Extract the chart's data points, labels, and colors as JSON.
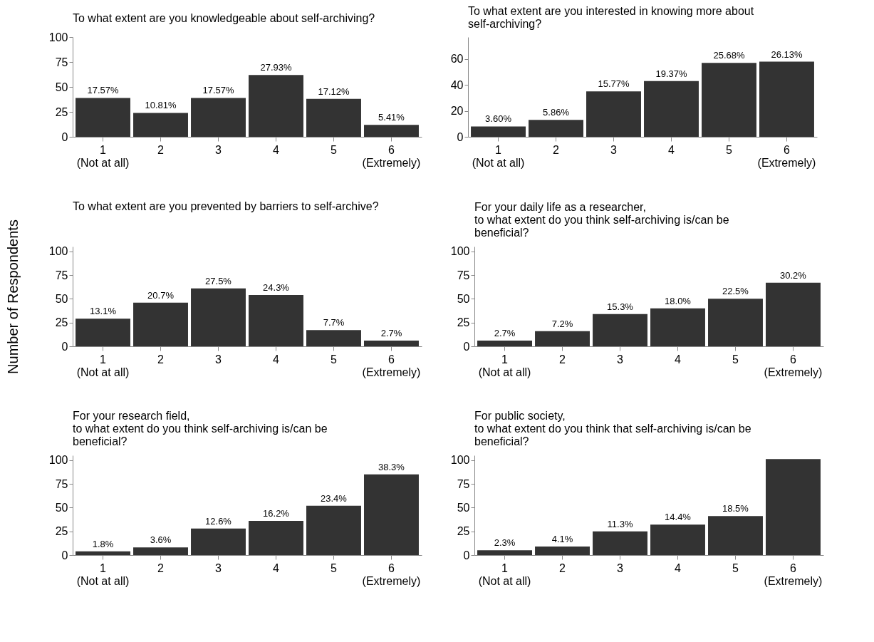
{
  "chart_data": [
    {
      "type": "bar",
      "title": "To what extent are you knowledgeable about self-archiving?",
      "categories": [
        "1\n(Not at all)",
        "2",
        "3",
        "4",
        "5",
        "6\n(Extremely)"
      ],
      "values": [
        39,
        24,
        39,
        62,
        38,
        12
      ],
      "color": "#333333",
      "ylim": [
        0,
        100
      ],
      "yticks": [
        0,
        25,
        50,
        75,
        100
      ],
      "annotations": [
        {
          "text": "17.57%",
          "x": "1\n(Not at all)",
          "y": 39
        },
        {
          "text": "10.81%",
          "x": "2",
          "y": 24
        },
        {
          "text": "17.57%",
          "x": "3",
          "y": 39
        },
        {
          "text": "27.93%",
          "x": "4",
          "y": 62
        },
        {
          "text": "17.12%",
          "x": "5",
          "y": 38
        },
        {
          "text": "5.41%",
          "x": "6\n(Extremely)",
          "y": 12
        }
      ]
    },
    {
      "type": "bar",
      "title": "To what extent are you interested in knowing more about\nself-archiving?",
      "categories": [
        "1\n(Not at all)",
        "2",
        "3",
        "4",
        "5",
        "6\n(Extremely)"
      ],
      "values": [
        8,
        13,
        35,
        43,
        57,
        58
      ],
      "color": "#333333",
      "ylim": [
        0,
        77
      ],
      "yticks": [
        0,
        20,
        40,
        60
      ],
      "annotations": [
        {
          "text": "3.60%",
          "x": "1\n(Not at all)",
          "y": 8
        },
        {
          "text": "5.86%",
          "x": "2",
          "y": 13
        },
        {
          "text": "15.77%",
          "x": "3",
          "y": 35
        },
        {
          "text": "19.37%",
          "x": "4",
          "y": 43
        },
        {
          "text": "25.68%",
          "x": "5",
          "y": 57
        },
        {
          "text": "26.13%",
          "x": "6\n(Extremely)",
          "y": 58
        }
      ]
    },
    {
      "type": "bar",
      "title": "To what extent are you prevented by barriers to self-archive?",
      "ylabel": "Number of Respondents",
      "categories": [
        "1\n(Not at all)",
        "2",
        "3",
        "4",
        "5",
        "6\n(Extremely)"
      ],
      "values": [
        29,
        46,
        61,
        54,
        17,
        6
      ],
      "color": "#333333",
      "ylim": [
        0,
        105
      ],
      "yticks": [
        0,
        25,
        50,
        75,
        100
      ],
      "annotations": [
        {
          "text": "13.1%",
          "x": "1\n(Not at all)",
          "y": 29
        },
        {
          "text": "20.7%",
          "x": "2",
          "y": 46
        },
        {
          "text": "27.5%",
          "x": "3",
          "y": 61
        },
        {
          "text": "24.3%",
          "x": "4",
          "y": 54
        },
        {
          "text": "7.7%",
          "x": "5",
          "y": 17
        },
        {
          "text": "2.7%",
          "x": "6\n(Extremely)",
          "y": 6
        }
      ]
    },
    {
      "type": "bar",
      "title": "For your daily life as a researcher,\nto what extent do you think self-archiving is/can be\nbeneficial?",
      "categories": [
        "1\n(Not at all)",
        "2",
        "3",
        "4",
        "5",
        "6\n(Extremely)"
      ],
      "values": [
        6,
        16,
        34,
        40,
        50,
        67
      ],
      "color": "#333333",
      "ylim": [
        0,
        105
      ],
      "yticks": [
        0,
        25,
        50,
        75,
        100
      ],
      "annotations": [
        {
          "text": "2.7%",
          "x": "1\n(Not at all)",
          "y": 6
        },
        {
          "text": "7.2%",
          "x": "2",
          "y": 16
        },
        {
          "text": "15.3%",
          "x": "3",
          "y": 34
        },
        {
          "text": "18.0%",
          "x": "4",
          "y": 40
        },
        {
          "text": "22.5%",
          "x": "5",
          "y": 50
        },
        {
          "text": "30.2%",
          "x": "6\n(Extremely)",
          "y": 67
        }
      ]
    },
    {
      "type": "bar",
      "title": "For your research field,\nto what extent do you think self-archiving is/can be\nbeneficial?",
      "categories": [
        "1\n(Not at all)",
        "2",
        "3",
        "4",
        "5",
        "6\n(Extremely)"
      ],
      "values": [
        4,
        8,
        28,
        36,
        52,
        85
      ],
      "color": "#333333",
      "ylim": [
        0,
        105
      ],
      "yticks": [
        0,
        25,
        50,
        75,
        100
      ],
      "annotations": [
        {
          "text": "1.8%",
          "x": "1\n(Not at all)",
          "y": 4
        },
        {
          "text": "3.6%",
          "x": "2",
          "y": 8
        },
        {
          "text": "12.6%",
          "x": "3",
          "y": 28
        },
        {
          "text": "16.2%",
          "x": "4",
          "y": 36
        },
        {
          "text": "23.4%",
          "x": "5",
          "y": 52
        },
        {
          "text": "38.3%",
          "x": "6\n(Extremely)",
          "y": 85
        }
      ]
    },
    {
      "type": "bar",
      "title": "For public society,\nto what extent do you think that self-archiving is/can be\nbeneficial?",
      "categories": [
        "1\n(Not at all)",
        "2",
        "3",
        "4",
        "5",
        "6\n(Extremely)"
      ],
      "values": [
        5,
        9,
        25,
        32,
        41,
        101
      ],
      "color": "#333333",
      "ylim": [
        0,
        105
      ],
      "yticks": [
        0,
        25,
        50,
        75,
        100
      ],
      "annotations": [
        {
          "text": "2.3%",
          "x": "1\n(Not at all)",
          "y": 5
        },
        {
          "text": "4.1%",
          "x": "2",
          "y": 9
        },
        {
          "text": "11.3%",
          "x": "3",
          "y": 25
        },
        {
          "text": "14.4%",
          "x": "4",
          "y": 32
        },
        {
          "text": "18.5%",
          "x": "5",
          "y": 41
        }
      ]
    }
  ]
}
